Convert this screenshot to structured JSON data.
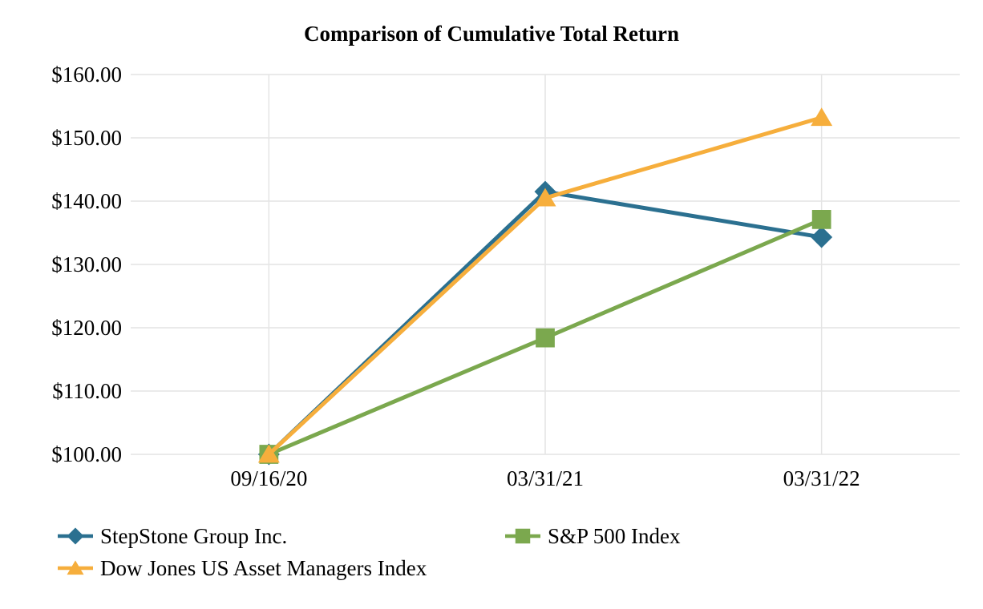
{
  "chart_data": {
    "type": "line",
    "title": "Comparison of Cumulative Total Return",
    "categories": [
      "09/16/20",
      "03/31/21",
      "03/31/22"
    ],
    "series": [
      {
        "name": "StepStone Group Inc.",
        "marker": "diamond",
        "color": "#2B7090",
        "values": [
          100.0,
          141.5,
          134.3
        ]
      },
      {
        "name": "S&P 500 Index",
        "marker": "square",
        "color": "#7BA84E",
        "values": [
          100.0,
          118.4,
          137.1
        ]
      },
      {
        "name": "Dow Jones US Asset Managers Index",
        "marker": "triangle",
        "color": "#F6AE3C",
        "values": [
          100.0,
          140.5,
          153.2
        ]
      }
    ],
    "y_axis": {
      "ticks": [
        {
          "value": 160,
          "label": "$160.00"
        },
        {
          "value": 150,
          "label": "$150.00"
        },
        {
          "value": 140,
          "label": "$140.00"
        },
        {
          "value": 130,
          "label": "$130.00"
        },
        {
          "value": 120,
          "label": "$120.00"
        },
        {
          "value": 110,
          "label": "$110.00"
        },
        {
          "value": 100,
          "label": "$100.00"
        }
      ]
    },
    "ylim": [
      100,
      160
    ],
    "grid": true,
    "grid_color": "#e4e4e4",
    "legend_position": "bottom",
    "text_color": "#000000",
    "background": "#ffffff"
  }
}
